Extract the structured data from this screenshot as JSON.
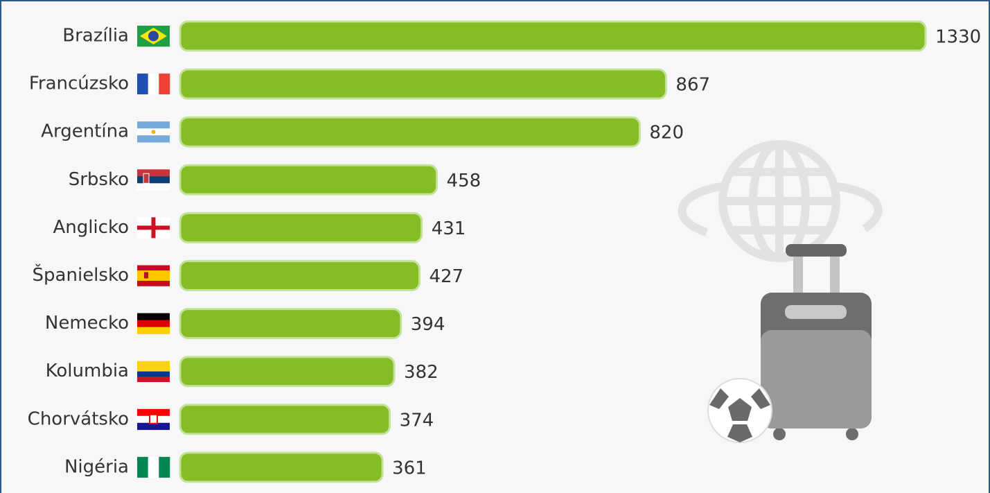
{
  "chart_data": {
    "type": "bar",
    "orientation": "horizontal",
    "categories": [
      "Brazília",
      "Francúzsko",
      "Argentína",
      "Srbsko",
      "Anglicko",
      "Španielsko",
      "Nemecko",
      "Kolumbia",
      "Chorvátsko",
      "Nigéria"
    ],
    "values": [
      1330,
      867,
      820,
      458,
      431,
      427,
      394,
      382,
      374,
      361
    ],
    "color": "#86bc25"
  }
}
